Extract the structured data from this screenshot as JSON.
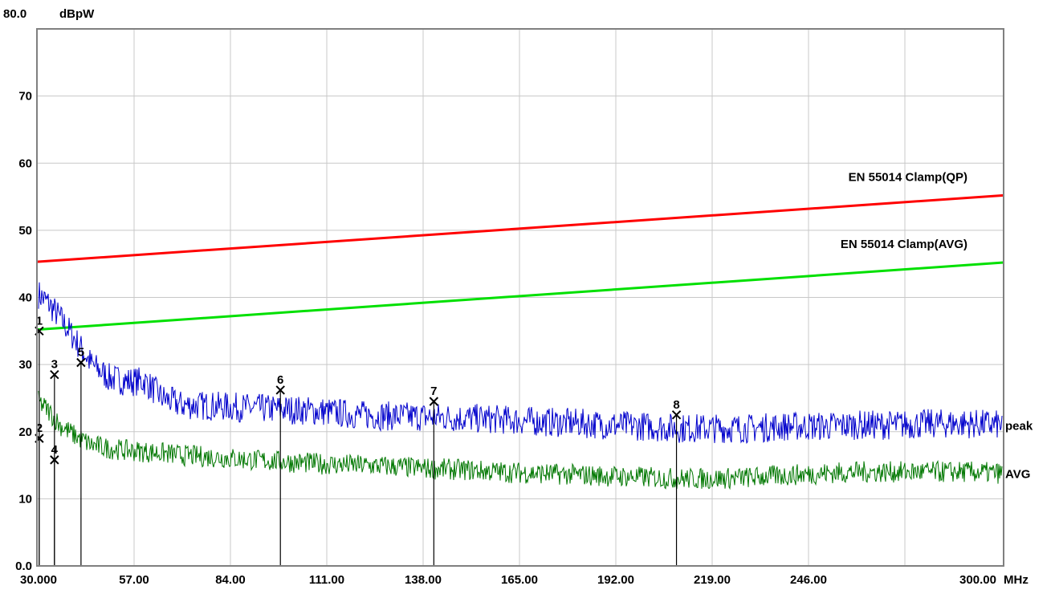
{
  "chart_data": {
    "type": "line",
    "title": "",
    "ylabel": "dBpW",
    "xlabel": "MHz",
    "ylim": [
      0,
      80
    ],
    "y_top_label": "80.0",
    "yticks": [
      "70",
      "60",
      "50",
      "40",
      "30",
      "20",
      "10",
      "0.0"
    ],
    "yticks_values": [
      70,
      60,
      50,
      40,
      30,
      20,
      10,
      0
    ],
    "xticks": [
      "30.000",
      "57.00",
      "84.00",
      "111.00",
      "138.00",
      "165.00",
      "192.00",
      "219.00",
      "246.00",
      "300.00"
    ],
    "xlim": [
      30,
      300
    ],
    "grid": true,
    "limit_lines": [
      {
        "name": "EN 55014 Clamp(QP)",
        "color": "#ff0000",
        "x": [
          30,
          300
        ],
        "y": [
          45.3,
          55.2
        ]
      },
      {
        "name": "EN 55014 Clamp(AVG)",
        "color": "#00e000",
        "x": [
          30,
          300
        ],
        "y": [
          35.2,
          45.2
        ]
      }
    ],
    "series": [
      {
        "name": "peak",
        "color": "#0000cc",
        "x": [
          30,
          33,
          36,
          40,
          45,
          50,
          55,
          60,
          65,
          70,
          80,
          90,
          100,
          110,
          120,
          130,
          140,
          150,
          160,
          170,
          180,
          190,
          200,
          210,
          220,
          230,
          240,
          250,
          260,
          270,
          280,
          290,
          300
        ],
        "y": [
          40.5,
          39,
          37,
          34,
          30,
          28,
          27.5,
          27.5,
          25,
          24,
          23.8,
          23.5,
          23.3,
          23,
          22.5,
          22.3,
          22.2,
          22,
          21.8,
          21.5,
          21.3,
          21,
          20.8,
          20.5,
          20.5,
          20.5,
          20.8,
          20.8,
          21,
          21,
          21.2,
          21.2,
          21
        ]
      },
      {
        "name": "AVG",
        "color": "#007700",
        "x": [
          30,
          33,
          36,
          40,
          45,
          50,
          55,
          60,
          65,
          70,
          80,
          90,
          100,
          110,
          120,
          130,
          140,
          150,
          160,
          170,
          180,
          190,
          200,
          210,
          220,
          230,
          240,
          250,
          260,
          270,
          280,
          290,
          300
        ],
        "y": [
          24.5,
          23,
          21,
          19.5,
          18,
          17.5,
          17.2,
          17,
          16.8,
          16.5,
          16.2,
          15.8,
          15.5,
          15.2,
          15,
          14.8,
          14.5,
          14.3,
          14,
          13.8,
          13.6,
          13.4,
          13.2,
          13,
          13,
          13.2,
          13.5,
          13.8,
          14,
          14,
          14,
          14,
          13.8
        ]
      }
    ],
    "markers": [
      {
        "label": "1",
        "x": 30.2,
        "y": 35.0
      },
      {
        "label": "2",
        "x": 30.2,
        "y": 19.0
      },
      {
        "label": "3",
        "x": 34.5,
        "y": 28.5
      },
      {
        "label": "4",
        "x": 34.5,
        "y": 15.8
      },
      {
        "label": "5",
        "x": 42.0,
        "y": 30.3
      },
      {
        "label": "6",
        "x": 98.0,
        "y": 26.2
      },
      {
        "label": "7",
        "x": 141.0,
        "y": 24.5
      },
      {
        "label": "8",
        "x": 209.0,
        "y": 22.5
      }
    ]
  }
}
